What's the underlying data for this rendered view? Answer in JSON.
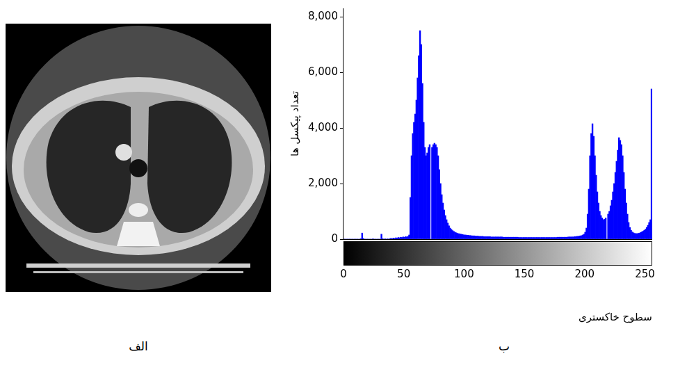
{
  "image": {
    "panel_label": "الف"
  },
  "chart_data": {
    "type": "histogram",
    "panel_label": "ب",
    "xlabel": "سطوح خاکستری",
    "ylabel": "تعداد پیکسل ها",
    "bins": [
      0,
      1,
      2,
      3,
      4,
      5,
      6,
      7,
      8,
      9,
      10,
      11,
      12,
      13,
      14,
      15,
      16,
      17,
      18,
      19,
      20,
      21,
      22,
      23,
      24,
      25,
      26,
      27,
      28,
      29,
      30,
      31,
      32,
      33,
      34,
      35,
      36,
      37,
      38,
      39,
      40,
      41,
      42,
      43,
      44,
      45,
      46,
      47,
      48,
      49,
      50,
      51,
      52,
      53,
      54,
      55,
      56,
      57,
      58,
      59,
      60,
      61,
      62,
      63,
      64,
      65,
      66,
      67,
      68,
      69,
      70,
      71,
      72,
      73,
      74,
      75,
      76,
      77,
      78,
      79,
      80,
      81,
      82,
      83,
      84,
      85,
      86,
      87,
      88,
      89,
      90,
      91,
      92,
      93,
      94,
      95,
      96,
      97,
      98,
      99,
      100,
      101,
      102,
      103,
      104,
      105,
      106,
      107,
      108,
      109,
      110,
      111,
      112,
      113,
      114,
      115,
      116,
      117,
      118,
      119,
      120,
      121,
      122,
      123,
      124,
      125,
      126,
      127,
      128,
      129,
      130,
      131,
      132,
      133,
      134,
      135,
      136,
      137,
      138,
      139,
      140,
      141,
      142,
      143,
      144,
      145,
      146,
      147,
      148,
      149,
      150,
      151,
      152,
      153,
      154,
      155,
      156,
      157,
      158,
      159,
      160,
      161,
      162,
      163,
      164,
      165,
      166,
      167,
      168,
      169,
      170,
      171,
      172,
      173,
      174,
      175,
      176,
      177,
      178,
      179,
      180,
      181,
      182,
      183,
      184,
      185,
      186,
      187,
      188,
      189,
      190,
      191,
      192,
      193,
      194,
      195,
      196,
      197,
      198,
      199,
      200,
      201,
      202,
      203,
      204,
      205,
      206,
      207,
      208,
      209,
      210,
      211,
      212,
      213,
      214,
      215,
      216,
      217,
      218,
      219,
      220,
      221,
      222,
      223,
      224,
      225,
      226,
      227,
      228,
      229,
      230,
      231,
      232,
      233,
      234,
      235,
      236,
      237,
      238,
      239,
      240,
      241,
      242,
      243,
      244,
      245,
      246,
      247,
      248,
      249,
      250,
      251,
      252,
      253,
      254,
      255,
      256
    ],
    "values": [
      0,
      0,
      0,
      0,
      0,
      0,
      0,
      0,
      0,
      0,
      0,
      0,
      0,
      0,
      20,
      220,
      30,
      0,
      0,
      0,
      0,
      0,
      0,
      0,
      10,
      0,
      0,
      0,
      0,
      0,
      0,
      180,
      20,
      0,
      10,
      0,
      10,
      0,
      20,
      30,
      20,
      40,
      30,
      50,
      40,
      60,
      50,
      70,
      60,
      80,
      70,
      90,
      80,
      100,
      150,
      1500,
      3000,
      3800,
      4200,
      4500,
      5000,
      5800,
      6600,
      7500,
      7000,
      5600,
      4200,
      3300,
      3000,
      3100,
      3300,
      3400,
      0,
      3300,
      3400,
      3450,
      3400,
      3300,
      3000,
      2500,
      2000,
      1600,
      1300,
      1050,
      850,
      700,
      580,
      480,
      400,
      350,
      310,
      280,
      250,
      230,
      210,
      200,
      190,
      180,
      170,
      160,
      150,
      150,
      140,
      140,
      130,
      130,
      120,
      120,
      120,
      110,
      110,
      110,
      100,
      100,
      100,
      100,
      90,
      90,
      90,
      90,
      90,
      90,
      80,
      80,
      80,
      80,
      80,
      80,
      80,
      80,
      80,
      80,
      70,
      70,
      70,
      70,
      70,
      70,
      70,
      70,
      70,
      70,
      70,
      70,
      70,
      60,
      60,
      60,
      60,
      60,
      60,
      60,
      60,
      60,
      60,
      60,
      60,
      60,
      60,
      60,
      60,
      60,
      60,
      60,
      60,
      60,
      60,
      60,
      60,
      60,
      60,
      60,
      60,
      60,
      60,
      60,
      60,
      70,
      70,
      70,
      70,
      70,
      70,
      70,
      70,
      70,
      80,
      80,
      80,
      80,
      80,
      90,
      90,
      100,
      100,
      110,
      120,
      130,
      150,
      180,
      250,
      400,
      900,
      1800,
      3000,
      3800,
      4150,
      3700,
      3000,
      2300,
      1700,
      1300,
      1000,
      850,
      760,
      700,
      720,
      760,
      0,
      900,
      1000,
      1200,
      1400,
      1700,
      2000,
      2400,
      2800,
      3200,
      3650,
      3550,
      3400,
      3000,
      2400,
      1800,
      1300,
      900,
      600,
      420,
      320,
      260,
      230,
      210,
      200,
      200,
      210,
      220,
      240,
      260,
      290,
      320,
      360,
      420,
      500,
      600,
      700,
      5400
    ],
    "color": "#0000ff",
    "xlim": [
      0,
      256
    ],
    "ylim": [
      0,
      8300
    ],
    "xticks": [
      0,
      50,
      100,
      150,
      200,
      250
    ],
    "yticks": [
      0,
      2000,
      4000,
      6000,
      8000
    ],
    "grid": false
  }
}
